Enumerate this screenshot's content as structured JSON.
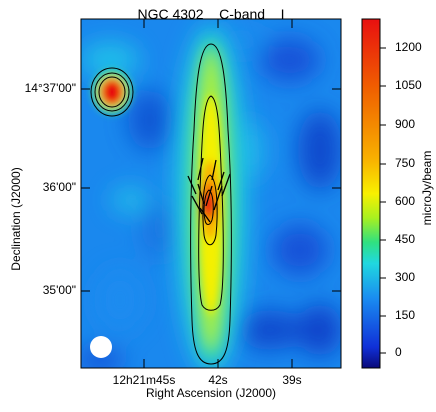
{
  "figure": {
    "title": "NGC 4302    C-band    I",
    "xlabel": "Right Ascension (J2000)",
    "ylabel": "Declination (J2000)",
    "xticks": [
      "12h21m45s",
      "42s",
      "39s"
    ],
    "yticks": [
      "14°37'00\"",
      "36'00\"",
      "35'00\""
    ],
    "colorbar": {
      "label": "microJy/beam",
      "ticks": [
        "1200",
        "1050",
        "900",
        "750",
        "600",
        "450",
        "300",
        "150",
        "0"
      ],
      "range": [
        -50,
        1300
      ],
      "colors": [
        "#0a0a7a",
        "#1030d8",
        "#1a8cf0",
        "#20d8e0",
        "#30e080",
        "#a8f020",
        "#f8f000",
        "#f8b000",
        "#f06000",
        "#e81010"
      ]
    }
  }
}
